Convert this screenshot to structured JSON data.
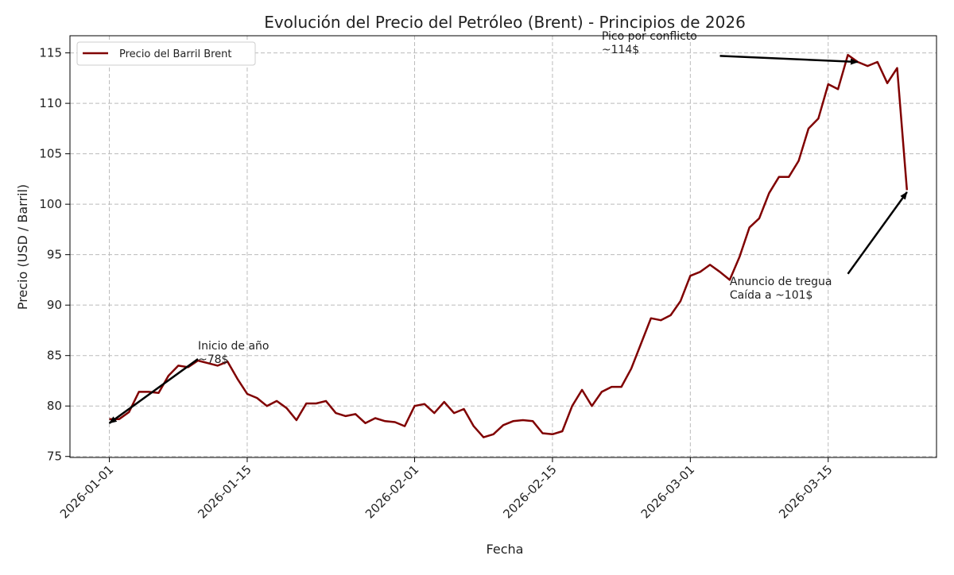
{
  "chart_data": {
    "type": "line",
    "title": "Evolución del Precio del Petróleo (Brent) - Principios de 2026",
    "xlabel": "Fecha",
    "ylabel": "Precio (USD / Barril)",
    "xlim": [
      "2025-12-28",
      "2026-03-26"
    ],
    "ylim": [
      74.9,
      116.7
    ],
    "grid": true,
    "legend_placement": "top-left",
    "x_ticks": [
      "2026-01-01",
      "2026-01-15",
      "2026-02-01",
      "2026-02-15",
      "2026-03-01",
      "2026-03-15"
    ],
    "y_ticks": [
      75,
      80,
      85,
      90,
      95,
      100,
      105,
      110,
      115
    ],
    "start_date": "2026-01-01",
    "series": [
      {
        "name": "Precio del Barril Brent",
        "color": "#800000",
        "values": [
          78.7,
          78.7,
          79.4,
          81.4,
          81.4,
          81.3,
          83.0,
          84.0,
          83.85,
          84.5,
          84.25,
          84.0,
          84.4,
          82.7,
          81.2,
          80.8,
          80.0,
          80.5,
          79.8,
          78.6,
          80.25,
          80.25,
          80.5,
          79.3,
          79.0,
          79.2,
          78.3,
          78.8,
          78.5,
          78.4,
          78.0,
          80.0,
          80.2,
          79.3,
          80.4,
          79.3,
          79.7,
          78.0,
          76.9,
          77.2,
          78.1,
          78.5,
          78.6,
          78.5,
          77.3,
          77.2,
          77.5,
          80.0,
          81.6,
          80.0,
          81.4,
          81.9,
          81.9,
          83.7,
          86.2,
          88.7,
          88.5,
          89.0,
          90.4,
          92.9,
          93.3,
          94.0,
          93.3,
          92.5,
          94.8,
          97.7,
          98.6,
          101.1,
          102.7,
          102.7,
          104.3,
          107.5,
          108.5,
          111.9,
          111.4,
          114.8,
          114.1,
          113.7,
          114.1,
          112.0,
          113.5,
          101.4
        ]
      }
    ],
    "annotations": [
      {
        "lines": [
          "Inicio de año",
          "~78$"
        ],
        "text_at": [
          "2026-01-10",
          85.6
        ],
        "arrow_to": [
          "2026-01-01",
          78.3
        ]
      },
      {
        "lines": [
          "Pico por conflicto",
          "~114$"
        ],
        "text_at": [
          "2026-02-20",
          116.3
        ],
        "arrow_from": [
          "2026-03-04",
          114.7
        ],
        "arrow_to": [
          "2026-03-18",
          114.1
        ]
      },
      {
        "lines": [
          "Anuncio de tregua",
          "Caída a ~101$"
        ],
        "text_at": [
          "2026-03-05",
          92.0
        ],
        "arrow_from": [
          "2026-03-17",
          93.1
        ],
        "arrow_to": [
          "2026-03-23",
          101.2
        ]
      }
    ]
  }
}
